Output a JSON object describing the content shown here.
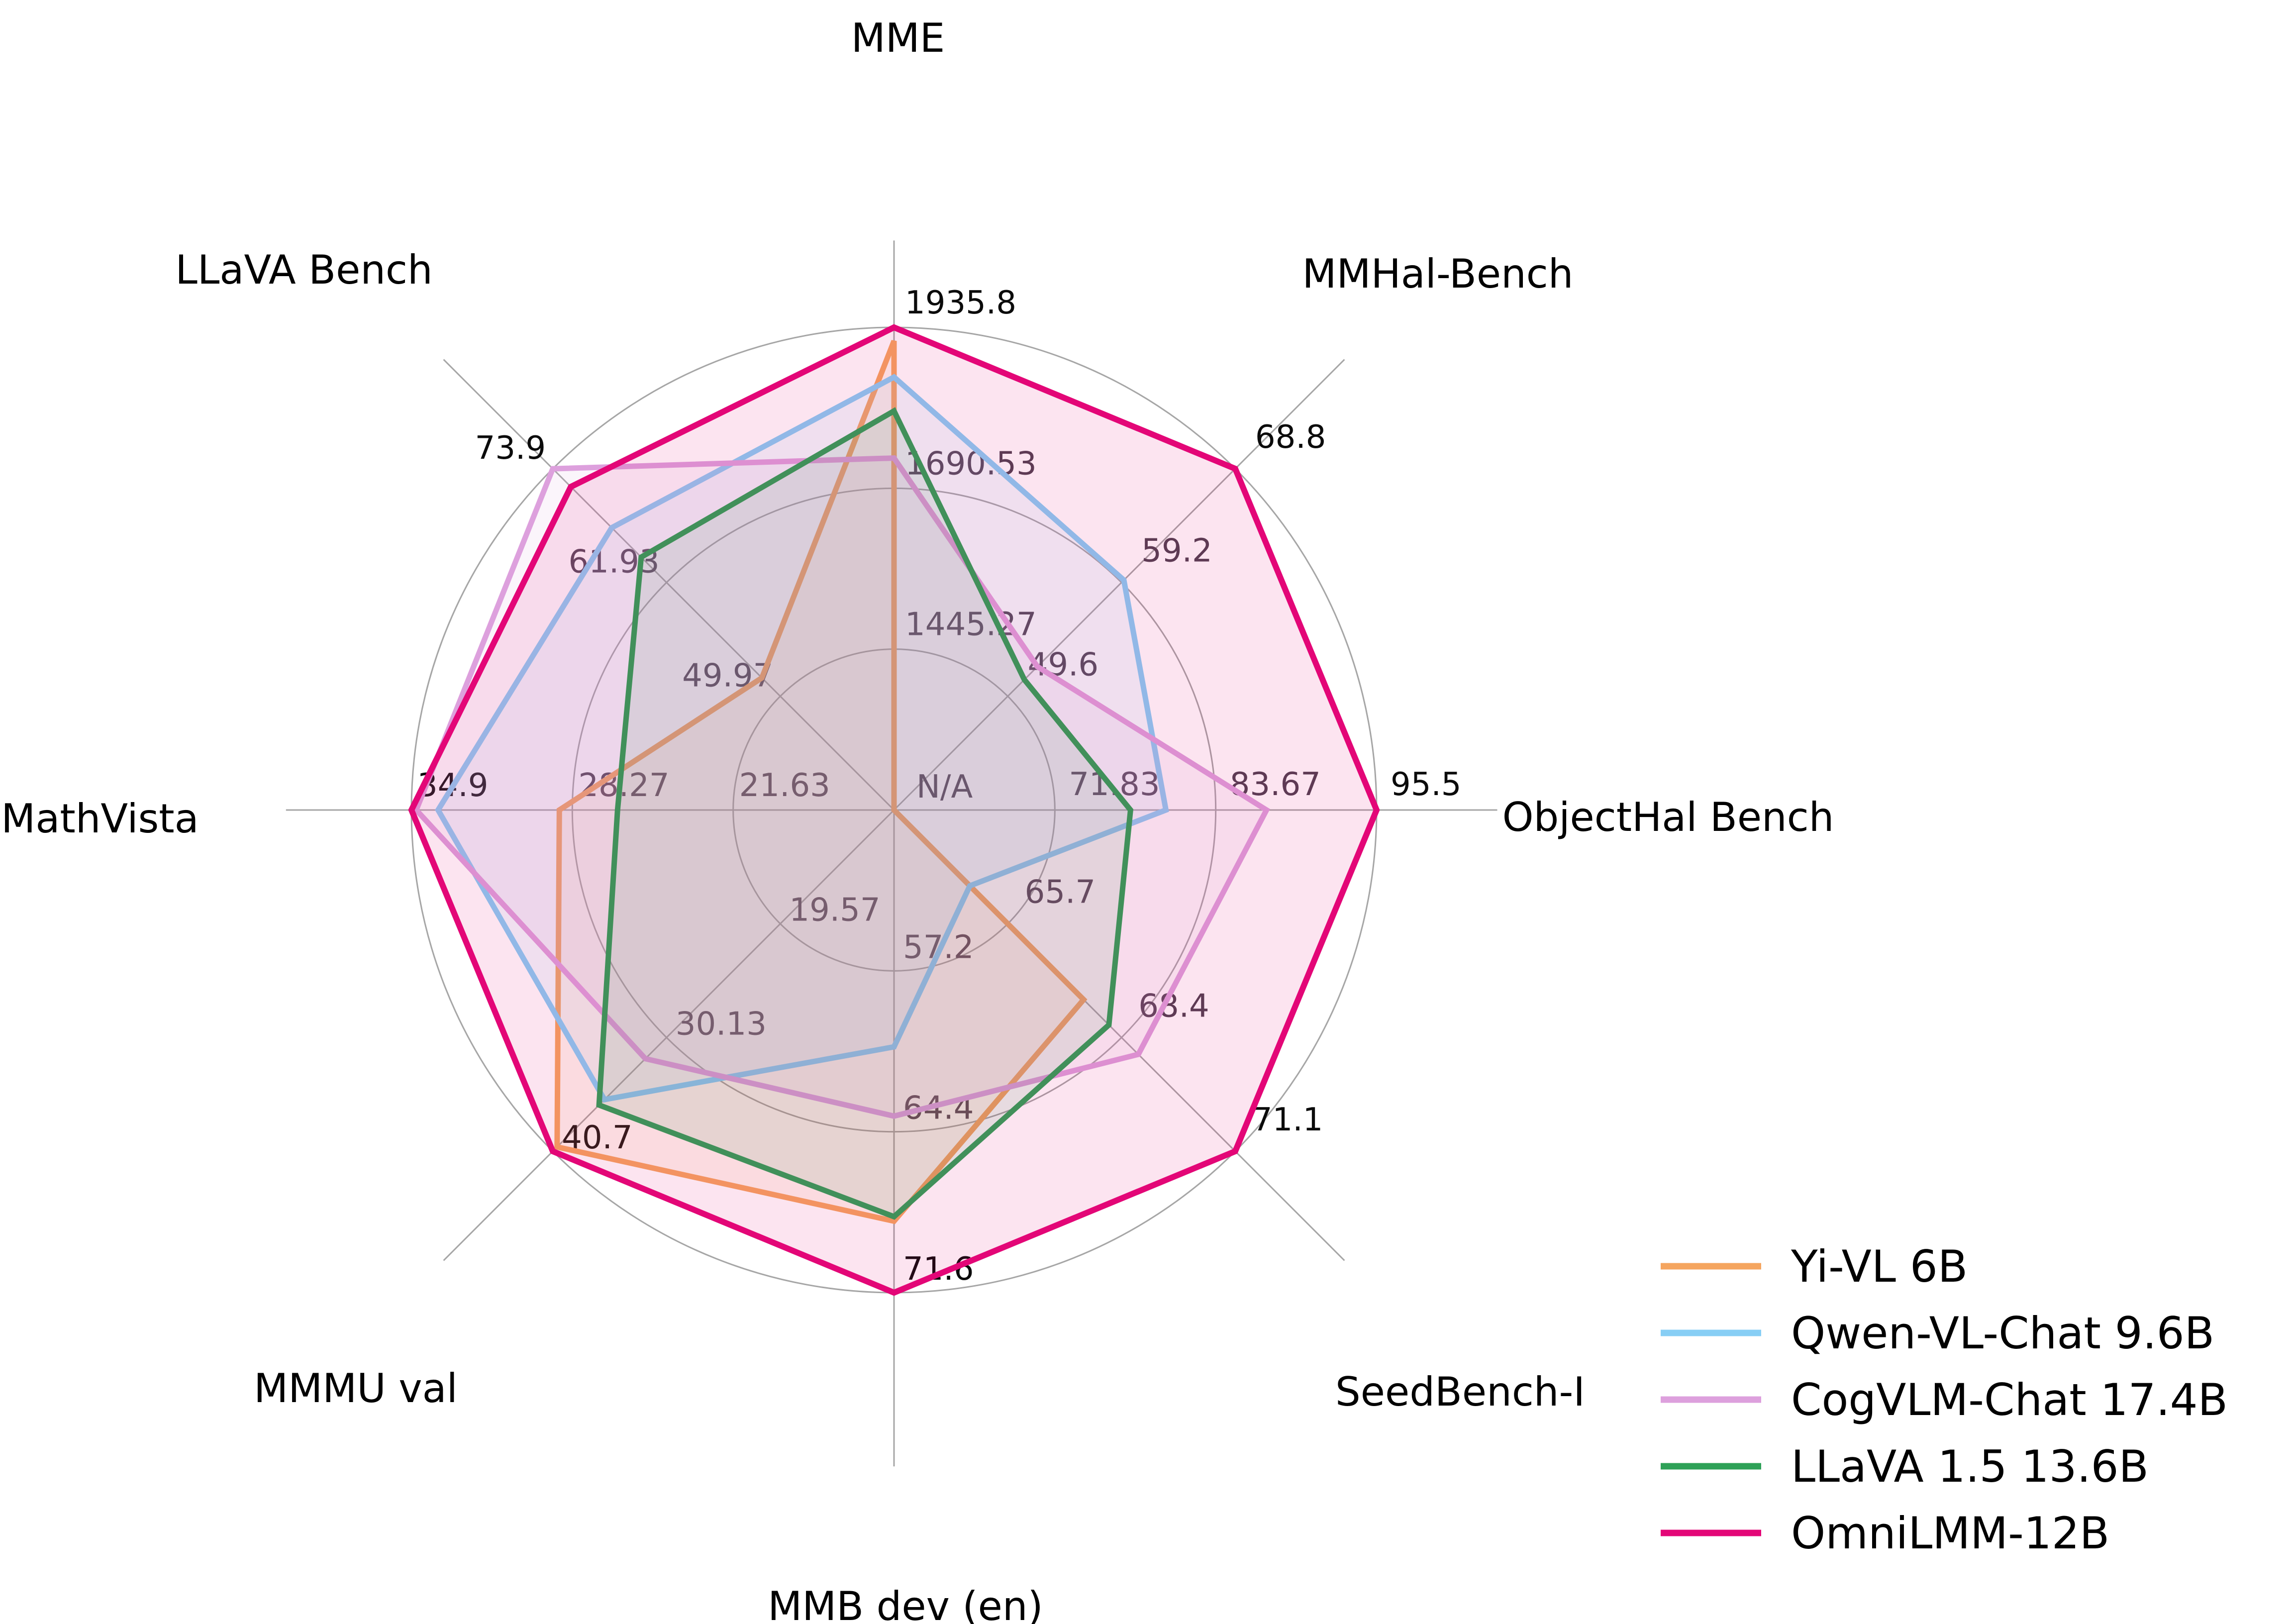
{
  "chart_data": {
    "type": "radar",
    "title": "",
    "center_label": "N/A",
    "grid": true,
    "gridlines": 3,
    "legend_position": "lower right",
    "axes": [
      {
        "label": "MME",
        "min": 1200,
        "max": 1935.8,
        "ring_labels": [
          "1445.27",
          "1690.53",
          "1935.8"
        ]
      },
      {
        "label": "MMHal-Bench",
        "min": 40,
        "max": 68.8,
        "ring_labels": [
          "49.6",
          "59.2",
          "68.8"
        ]
      },
      {
        "label": "ObjectHal Bench",
        "min": 60,
        "max": 95.5,
        "ring_labels": [
          "71.83",
          "83.67",
          "95.5"
        ]
      },
      {
        "label": "SeedBench-I",
        "min": 63,
        "max": 71.1,
        "ring_labels": [
          "65.7",
          "68.4",
          "71.1"
        ]
      },
      {
        "label": "MMB dev (en)",
        "min": 50,
        "max": 71.6,
        "ring_labels": [
          "57.2",
          "64.4",
          "71.6"
        ]
      },
      {
        "label": "MMMU val",
        "min": 9,
        "max": 40.7,
        "ring_labels": [
          "19.57",
          "30.13",
          "40.7"
        ]
      },
      {
        "label": "MathVista",
        "min": 15,
        "max": 34.9,
        "ring_labels": [
          "21.63",
          "28.27",
          "34.9"
        ]
      },
      {
        "label": "LLaVA Bench",
        "min": 38,
        "max": 73.9,
        "ring_labels": [
          "49.97",
          "61.93",
          "73.9"
        ]
      }
    ],
    "series": [
      {
        "name": "Yi-VL 6B",
        "color": "#F5A55F",
        "values": [
          1915.1,
          null,
          null,
          67.5,
          68.4,
          40.3,
          28.8,
          51.9
        ]
      },
      {
        "name": "Qwen-VL-Chat 9.6B",
        "color": "#87CEF5",
        "values": [
          1860.0,
          59.4,
          80.0,
          64.8,
          60.6,
          35.9,
          33.8,
          67.7
        ]
      },
      {
        "name": "CogVLM-Chat 17.4B",
        "color": "#DDA0DD",
        "values": [
          1736.6,
          52.1,
          87.4,
          68.8,
          63.7,
          32.1,
          34.7,
          73.9
        ]
      },
      {
        "name": "LLaVA 1.5 13.6B",
        "color": "#2EA157",
        "values": [
          1808.4,
          51.0,
          77.4,
          68.1,
          68.2,
          36.4,
          26.4,
          64.6
        ]
      },
      {
        "name": "OmniLMM-12B",
        "color": "#E30677",
        "values": [
          1935.8,
          68.8,
          95.5,
          71.1,
          71.6,
          40.7,
          34.9,
          72.0
        ]
      }
    ],
    "style": {
      "grid_color": "#A6A6A6",
      "inner_label_color": "#4E4150",
      "outer_label_color": "#0B0B0B",
      "title_color": "#000000",
      "fill_opacity": "0.11"
    }
  }
}
